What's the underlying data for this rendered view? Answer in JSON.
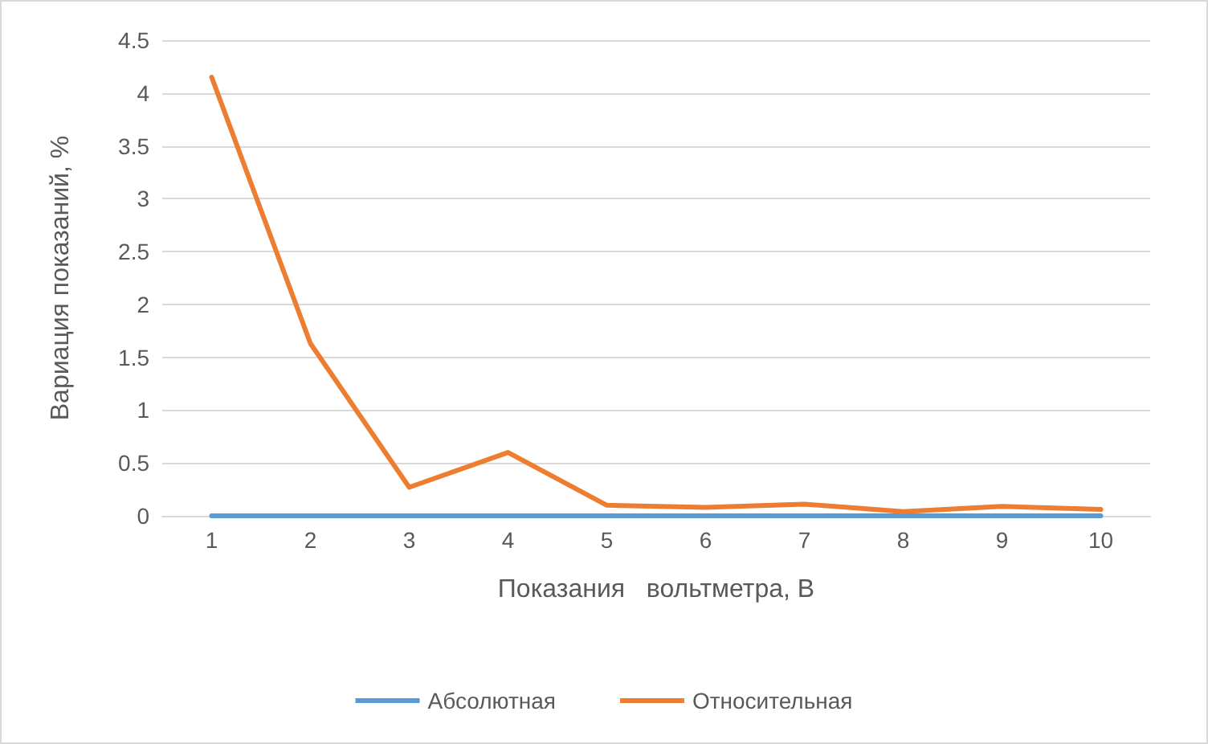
{
  "chart_data": {
    "type": "line",
    "xlabel": "Показания   вольтметра, В",
    "ylabel": "Вариация показаний, %",
    "categories": [
      "1",
      "2",
      "3",
      "4",
      "5",
      "6",
      "7",
      "8",
      "9",
      "10"
    ],
    "series": [
      {
        "name": "Абсолютная",
        "color": "#5b9bd5",
        "values": [
          0,
          0,
          0,
          0,
          0,
          0,
          0,
          0,
          0,
          0
        ]
      },
      {
        "name": "Относительная",
        "color": "#ed7d31",
        "values": [
          4.15,
          1.63,
          0.27,
          0.6,
          0.1,
          0.08,
          0.11,
          0.04,
          0.09,
          0.06
        ]
      }
    ],
    "ylim": [
      0,
      4.5
    ],
    "yticks": [
      0,
      0.5,
      1,
      1.5,
      2,
      2.5,
      3,
      3.5,
      4,
      4.5
    ],
    "grid": "y",
    "legend": "bottom",
    "marker": "none",
    "line_style": "solid"
  }
}
